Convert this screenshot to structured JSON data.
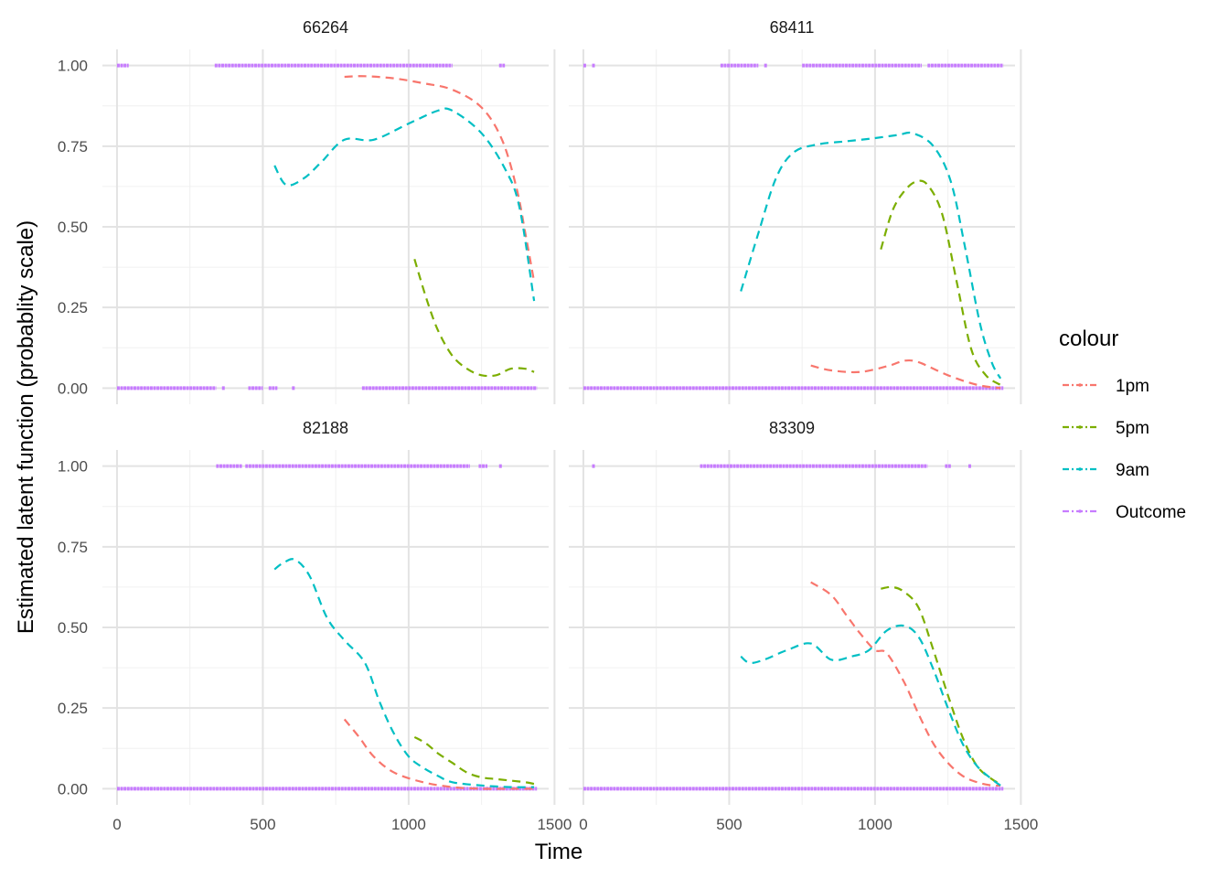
{
  "chart_data": {
    "type": "line",
    "xlabel": "Time",
    "ylabel": "Estimated latent function (probablity scale)",
    "xlim": [
      -50,
      1480
    ],
    "ylim": [
      -0.05,
      1.05
    ],
    "x_ticks": [
      0,
      500,
      1000,
      1500
    ],
    "x_tick_labels": [
      "0",
      "500",
      "1000",
      "1500"
    ],
    "y_ticks": [
      0,
      0.25,
      0.5,
      0.75,
      1
    ],
    "y_tick_labels": [
      "0.00",
      "0.25",
      "0.50",
      "0.75",
      "1.00"
    ],
    "grid": true,
    "legend": {
      "title": "colour",
      "placement": "right",
      "entries": [
        {
          "label": "1pm",
          "color": "#F8766D"
        },
        {
          "label": "5pm",
          "color": "#7CAE00"
        },
        {
          "label": "9am",
          "color": "#00BFC4"
        },
        {
          "label": "Outcome",
          "color": "#C77CFF"
        }
      ]
    },
    "panels": [
      {
        "title": "66264",
        "series": [
          {
            "name": "1pm",
            "color": "#F8766D",
            "x": [
              780,
              850,
              950,
              1050,
              1150,
              1250,
              1320,
              1370,
              1400,
              1430
            ],
            "y": [
              0.965,
              0.967,
              0.96,
              0.945,
              0.925,
              0.87,
              0.77,
              0.62,
              0.48,
              0.33
            ]
          },
          {
            "name": "5pm",
            "color": "#7CAE00",
            "x": [
              1020,
              1060,
              1100,
              1150,
              1200,
              1250,
              1300,
              1350,
              1400,
              1430
            ],
            "y": [
              0.4,
              0.28,
              0.18,
              0.1,
              0.06,
              0.04,
              0.04,
              0.06,
              0.06,
              0.05
            ]
          },
          {
            "name": "9am",
            "color": "#00BFC4",
            "x": [
              540,
              580,
              640,
              700,
              780,
              880,
              1000,
              1100,
              1150,
              1250,
              1330,
              1380,
              1430
            ],
            "y": [
              0.69,
              0.63,
              0.65,
              0.7,
              0.77,
              0.77,
              0.82,
              0.86,
              0.86,
              0.79,
              0.68,
              0.56,
              0.27
            ]
          }
        ],
        "outcome": {
          "one_segments": [
            [
              0,
              40
            ],
            [
              335,
              1150
            ],
            [
              1310,
              1330
            ]
          ],
          "zero_segments": [
            [
              0,
              340
            ],
            [
              360,
              370
            ],
            [
              450,
              500
            ],
            [
              520,
              550
            ],
            [
              600,
              610
            ],
            [
              840,
              1440
            ]
          ]
        }
      },
      {
        "title": "68411",
        "series": [
          {
            "name": "1pm",
            "color": "#F8766D",
            "x": [
              780,
              850,
              950,
              1050,
              1100,
              1150,
              1250,
              1350,
              1430
            ],
            "y": [
              0.07,
              0.055,
              0.05,
              0.07,
              0.085,
              0.08,
              0.04,
              0.01,
              0.0
            ]
          },
          {
            "name": "5pm",
            "color": "#7CAE00",
            "x": [
              1020,
              1060,
              1100,
              1140,
              1180,
              1230,
              1280,
              1330,
              1380,
              1430
            ],
            "y": [
              0.43,
              0.55,
              0.61,
              0.64,
              0.63,
              0.54,
              0.33,
              0.12,
              0.04,
              0.01
            ]
          },
          {
            "name": "9am",
            "color": "#00BFC4",
            "x": [
              540,
              600,
              660,
              720,
              800,
              900,
              1000,
              1080,
              1130,
              1200,
              1260,
              1310,
              1360,
              1400,
              1430
            ],
            "y": [
              0.3,
              0.48,
              0.65,
              0.73,
              0.755,
              0.765,
              0.775,
              0.785,
              0.79,
              0.75,
              0.64,
              0.43,
              0.2,
              0.08,
              0.03
            ]
          }
        ],
        "outcome": {
          "one_segments": [
            [
              0,
              10
            ],
            [
              30,
              40
            ],
            [
              470,
              600
            ],
            [
              620,
              630
            ],
            [
              750,
              1160
            ],
            [
              1180,
              1440
            ]
          ],
          "zero_segments": [
            [
              0,
              1440
            ]
          ]
        }
      },
      {
        "title": "82188",
        "series": [
          {
            "name": "1pm",
            "color": "#F8766D",
            "x": [
              780,
              830,
              880,
              950,
              1050,
              1150,
              1250,
              1350,
              1430
            ],
            "y": [
              0.215,
              0.16,
              0.1,
              0.05,
              0.02,
              0.005,
              0.0,
              0.0,
              0.0
            ]
          },
          {
            "name": "5pm",
            "color": "#7CAE00",
            "x": [
              1020,
              1060,
              1100,
              1150,
              1200,
              1250,
              1300,
              1350,
              1400,
              1430
            ],
            "y": [
              0.16,
              0.14,
              0.11,
              0.08,
              0.05,
              0.035,
              0.03,
              0.025,
              0.02,
              0.015
            ]
          },
          {
            "name": "9am",
            "color": "#00BFC4",
            "x": [
              540,
              570,
              610,
              660,
              720,
              780,
              850,
              900,
              950,
              1000,
              1050,
              1100,
              1150,
              1250,
              1350,
              1430
            ],
            "y": [
              0.68,
              0.7,
              0.71,
              0.66,
              0.53,
              0.46,
              0.39,
              0.27,
              0.17,
              0.1,
              0.065,
              0.04,
              0.02,
              0.01,
              0.005,
              0.005
            ]
          }
        ],
        "outcome": {
          "one_segments": [
            [
              340,
              430
            ],
            [
              440,
              1210
            ],
            [
              1240,
              1270
            ],
            [
              1310,
              1320
            ]
          ],
          "zero_segments": [
            [
              0,
              1440
            ]
          ]
        }
      },
      {
        "title": "83309",
        "series": [
          {
            "name": "1pm",
            "color": "#F8766D",
            "x": [
              780,
              850,
              900,
              950,
              1000,
              1040,
              1100,
              1150,
              1200,
              1250,
              1300,
              1350,
              1400,
              1430
            ],
            "y": [
              0.64,
              0.6,
              0.54,
              0.48,
              0.43,
              0.42,
              0.33,
              0.23,
              0.14,
              0.08,
              0.04,
              0.02,
              0.01,
              0.01
            ]
          },
          {
            "name": "5pm",
            "color": "#7CAE00",
            "x": [
              1020,
              1060,
              1100,
              1150,
              1200,
              1250,
              1300,
              1350,
              1400,
              1430
            ],
            "y": [
              0.62,
              0.625,
              0.61,
              0.56,
              0.43,
              0.29,
              0.16,
              0.07,
              0.03,
              0.015
            ]
          },
          {
            "name": "9am",
            "color": "#00BFC4",
            "x": [
              540,
              570,
              620,
              700,
              780,
              850,
              920,
              980,
              1040,
              1100,
              1150,
              1200,
              1250,
              1300,
              1350,
              1400,
              1430
            ],
            "y": [
              0.41,
              0.39,
              0.4,
              0.43,
              0.45,
              0.4,
              0.41,
              0.43,
              0.49,
              0.505,
              0.47,
              0.37,
              0.25,
              0.14,
              0.07,
              0.03,
              0.01
            ]
          }
        ],
        "outcome": {
          "one_segments": [
            [
              30,
              40
            ],
            [
              400,
              1180
            ],
            [
              1240,
              1260
            ],
            [
              1320,
              1330
            ]
          ],
          "zero_segments": [
            [
              0,
              1440
            ]
          ]
        }
      }
    ]
  }
}
